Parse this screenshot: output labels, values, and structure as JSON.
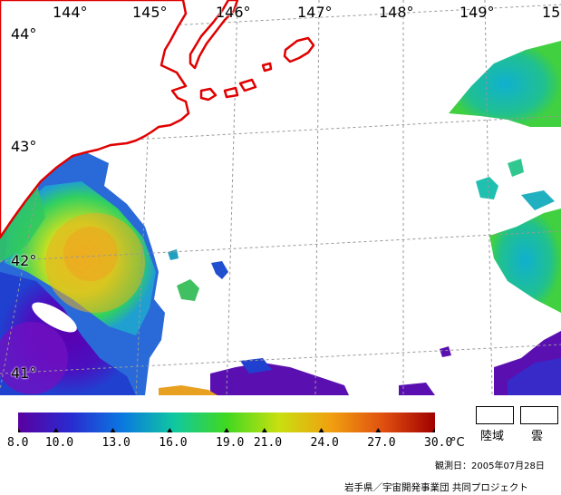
{
  "map": {
    "longitude_labels": [
      "144°",
      "145°",
      "146°",
      "147°",
      "148°",
      "149°",
      "15"
    ],
    "latitude_labels": [
      "44°",
      "43°",
      "42°",
      "41°"
    ],
    "coastline_color": "#e00000",
    "graticule_color": "#999999",
    "land_fill_color": "#ffffff"
  },
  "colorbar": {
    "ticks": [
      "8.0",
      "10.0",
      "13.0",
      "16.0",
      "19.0",
      "21.0",
      "24.0",
      "27.0",
      "30.0"
    ],
    "unit": "°C",
    "colors": [
      "#5a00a0",
      "#2a2ad0",
      "#0a78e0",
      "#10c8a0",
      "#40d820",
      "#c8e010",
      "#f0a010",
      "#e05010",
      "#a00000"
    ]
  },
  "legend": {
    "land_label": "陸域",
    "cloud_label": "雲"
  },
  "footer": {
    "observation_date": "観測日：2005年07月28日",
    "credit": "岩手県／宇宙開発事業団 共同プロジェクト"
  }
}
